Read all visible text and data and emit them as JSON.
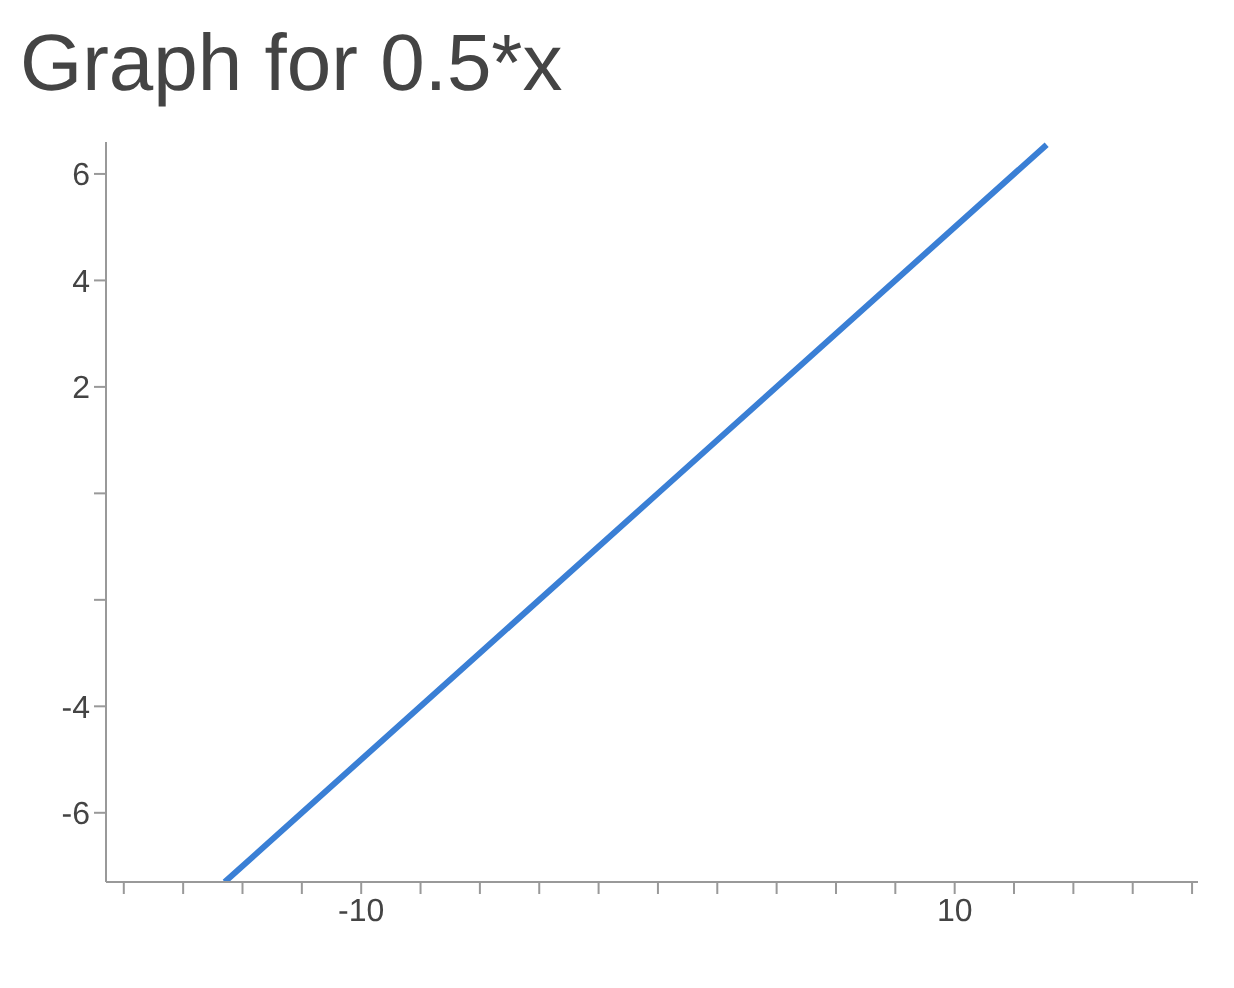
{
  "chart_data": {
    "type": "line",
    "title": "Graph for 0.5*x",
    "series": [
      {
        "color": "#3a7fd5",
        "x": [
          -14.6,
          0,
          13.1
        ],
        "values": [
          -7.3,
          0,
          6.55
        ]
      }
    ],
    "xlim": [
      -18.6,
      18.2
    ],
    "ylim": [
      -7.3,
      6.6
    ],
    "xticks": [
      {
        "value": -18,
        "label": null
      },
      {
        "value": -16,
        "label": null
      },
      {
        "value": -14,
        "label": null
      },
      {
        "value": -12,
        "label": null
      },
      -10,
      {
        "value": -8,
        "label": null
      },
      {
        "value": -6,
        "label": null
      },
      {
        "value": -4,
        "label": null
      },
      {
        "value": -2,
        "label": null
      },
      {
        "value": 0,
        "label": null
      },
      {
        "value": 2,
        "label": null
      },
      {
        "value": 4,
        "label": null
      },
      {
        "value": 6,
        "label": null
      },
      {
        "value": 8,
        "label": null
      },
      10,
      {
        "value": 12,
        "label": null
      },
      {
        "value": 14,
        "label": null
      },
      {
        "value": 16,
        "label": null
      },
      {
        "value": 18,
        "label": null
      }
    ],
    "yticks": [
      -6,
      -4,
      {
        "value": -2,
        "label": null
      },
      {
        "value": 0,
        "label": null
      },
      2,
      4,
      6
    ],
    "grid": false,
    "marker": "none",
    "line_style": "solid"
  }
}
